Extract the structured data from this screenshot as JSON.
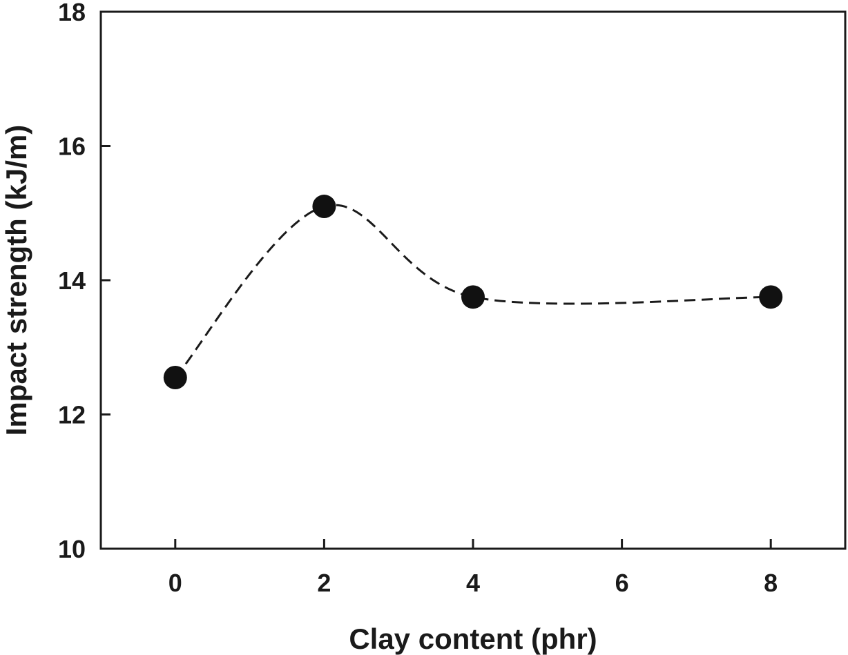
{
  "chart_data": {
    "type": "scatter",
    "title": "",
    "xlabel": "Clay content (phr)",
    "ylabel": "Impact strength (kJ/m)",
    "xlim": [
      -1,
      9
    ],
    "ylim": [
      10,
      18
    ],
    "x_ticks": [
      "0",
      "2",
      "4",
      "6",
      "8"
    ],
    "y_ticks": [
      "10",
      "12",
      "14",
      "16",
      "18"
    ],
    "grid": false,
    "legend": "none",
    "series": [
      {
        "x": [
          0,
          2,
          4,
          8
        ],
        "y": [
          12.55,
          15.1,
          13.75,
          13.75
        ],
        "marker": "filled-circle",
        "line": "dashed-smooth-curve",
        "color": "#111111"
      }
    ]
  }
}
